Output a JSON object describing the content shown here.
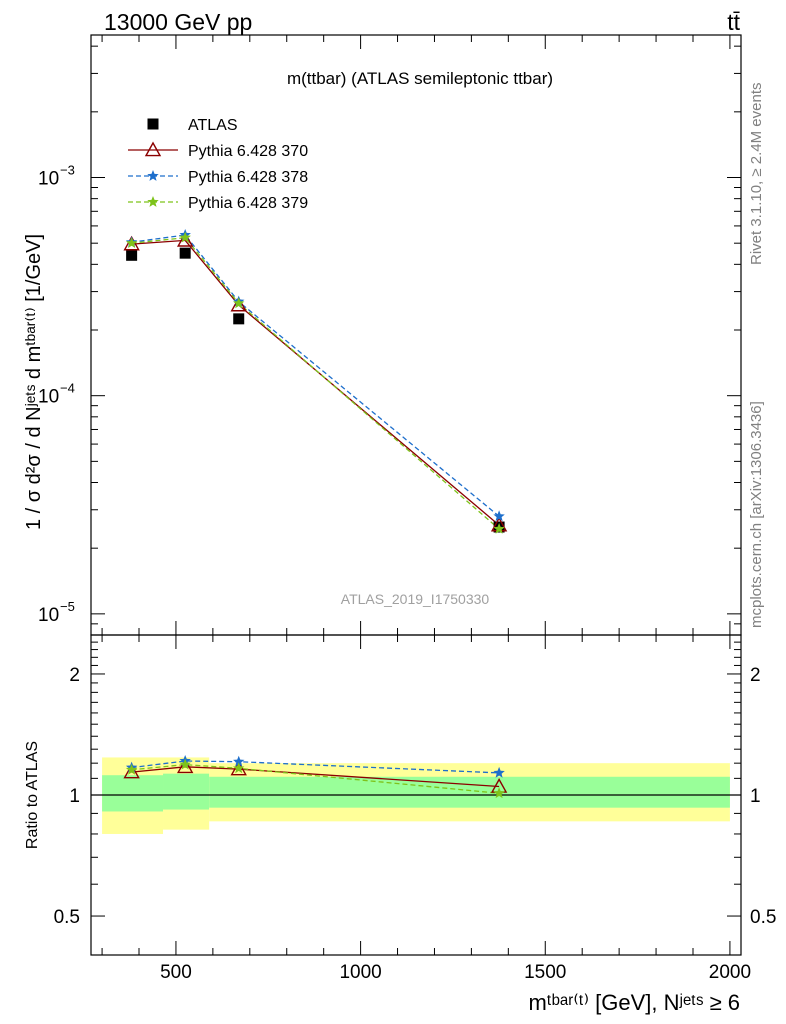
{
  "header": {
    "energy": "13000 GeV pp",
    "process": "tt̄"
  },
  "side_labels": {
    "rivet": "Rivet 3.1.10, ≥ 2.4M events",
    "mcplots": "mcplots.cern.ch [arXiv:1306.3436]"
  },
  "chart_data": [
    {
      "type": "line",
      "title": "m(ttbar) (ATLAS semileptonic ttbar)",
      "watermark": "ATLAS_2019_I1750330",
      "ylabel": "1 / σ d²σ / d Nʲᵉᵗˢ d mᵗᵇᵃʳ⁽ᵗ⁾ [1/GeV]",
      "yscale": "log",
      "ylim": [
        8e-06,
        0.0045
      ],
      "xlim": [
        270,
        2030
      ],
      "y_ticks": [
        {
          "value": 1e-05,
          "base": "10",
          "exp": "−5"
        },
        {
          "value": 0.0001,
          "base": "10",
          "exp": "−4"
        },
        {
          "value": 0.001,
          "base": "10",
          "exp": "−3"
        }
      ],
      "legend_position": "top-left",
      "x": [
        380,
        525,
        670,
        1375
      ],
      "series": [
        {
          "name": "ATLAS",
          "marker": "square",
          "color": "#000000",
          "values": [
            0.00044,
            0.00045,
            0.000225,
            2.5e-05
          ]
        },
        {
          "name": "Pythia 6.428 370",
          "marker": "open-triangle",
          "color": "#8b0000",
          "style": "solid",
          "values": [
            0.000495,
            0.000515,
            0.00026,
            2.55e-05
          ]
        },
        {
          "name": "Pythia 6.428 378",
          "marker": "star",
          "color": "#1e6fcc",
          "style": "dashed",
          "values": [
            0.000505,
            0.000545,
            0.00027,
            2.8e-05
          ]
        },
        {
          "name": "Pythia 6.428 379",
          "marker": "star",
          "color": "#7ec31b",
          "style": "dashed",
          "values": [
            0.0005,
            0.00053,
            0.000265,
            2.45e-05
          ]
        }
      ]
    },
    {
      "type": "line",
      "ylabel": "Ratio to ATLAS",
      "yscale": "log",
      "ylim": [
        0.4,
        2.5
      ],
      "xlim": [
        270,
        2030
      ],
      "xlabel": "mᵗᵇᵃʳ⁽ᵗ⁾ [GeV], Nʲᵉᵗˢ ≥ 6",
      "y_ticks": [
        {
          "value": 0.5,
          "label": "0.5"
        },
        {
          "value": 1,
          "label": "1"
        },
        {
          "value": 2,
          "label": "2"
        }
      ],
      "x_ticks": [
        {
          "value": 500,
          "label": "500"
        },
        {
          "value": 1000,
          "label": "1000"
        },
        {
          "value": 1500,
          "label": "1500"
        },
        {
          "value": 2000,
          "label": "2000"
        }
      ],
      "bands": [
        {
          "x0": 300,
          "x1": 465,
          "stat": [
            0.91,
            1.12
          ],
          "total": [
            0.8,
            1.24
          ]
        },
        {
          "x0": 465,
          "x1": 590,
          "stat": [
            0.92,
            1.13
          ],
          "total": [
            0.82,
            1.24
          ]
        },
        {
          "x0": 590,
          "x1": 2000,
          "stat": [
            0.93,
            1.11
          ],
          "total": [
            0.86,
            1.2
          ]
        }
      ],
      "x": [
        380,
        525,
        670,
        1375
      ],
      "series": [
        {
          "name": "Pythia 6.428 370",
          "color": "#8b0000",
          "marker": "open-triangle",
          "style": "solid",
          "values": [
            1.14,
            1.175,
            1.16,
            1.05
          ]
        },
        {
          "name": "Pythia 6.428 378",
          "color": "#1e6fcc",
          "marker": "star",
          "style": "dashed",
          "values": [
            1.17,
            1.215,
            1.21,
            1.135
          ]
        },
        {
          "name": "Pythia 6.428 379",
          "color": "#7ec31b",
          "marker": "star",
          "style": "dashed",
          "values": [
            1.155,
            1.19,
            1.165,
            1.01
          ]
        }
      ]
    }
  ]
}
